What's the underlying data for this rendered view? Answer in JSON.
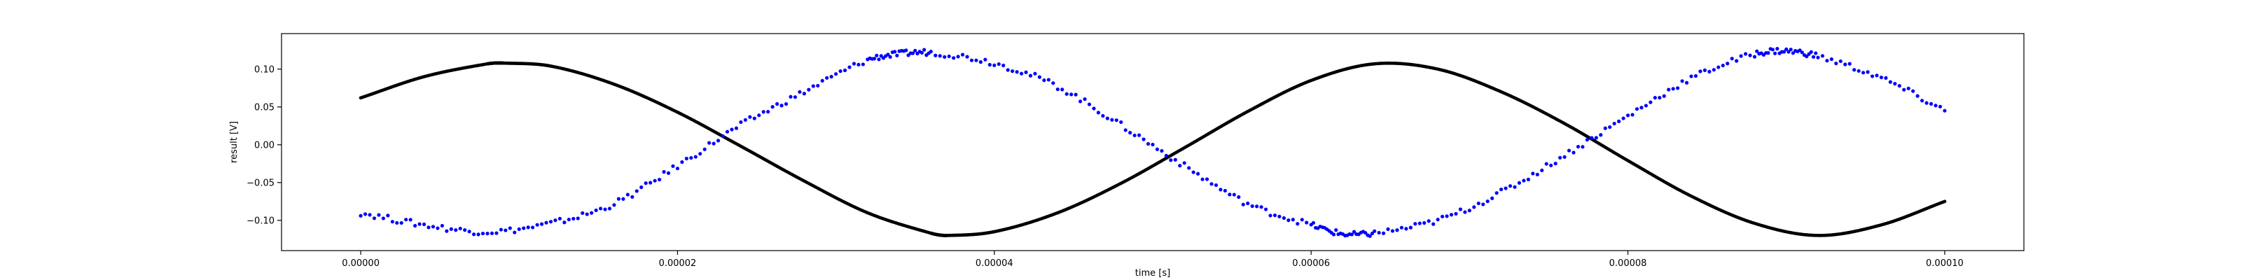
{
  "chart_data": {
    "type": "scatter",
    "xlabel": "time [s]",
    "ylabel": "result [V]",
    "xlim": [
      -5e-06,
      0.000105
    ],
    "ylim": [
      -0.14,
      0.147
    ],
    "x_ticks": [
      "0.00000",
      "0.00002",
      "0.00004",
      "0.00006",
      "0.00008",
      "0.00010"
    ],
    "x_tick_values": [
      0,
      2e-05,
      4e-05,
      6e-05,
      8e-05,
      0.0001
    ],
    "y_ticks": [
      "−0.10",
      "−0.05",
      "0.00",
      "0.05",
      "0.10"
    ],
    "y_tick_values": [
      -0.1,
      -0.05,
      0,
      0.05,
      0.1
    ],
    "grid": false,
    "series": [
      {
        "color": "#000000",
        "points": [
          [
            0.0,
            0.062
          ],
          [
            4e-06,
            0.09
          ],
          [
            8e-06,
            0.107
          ],
          [
            9e-06,
            0.108
          ],
          [
            1.2e-05,
            0.104
          ],
          [
            1.6e-05,
            0.08
          ],
          [
            2e-05,
            0.043
          ],
          [
            2.4e-05,
            -0.002
          ],
          [
            2.8e-05,
            -0.048
          ],
          [
            3.2e-05,
            -0.09
          ],
          [
            3.6e-05,
            -0.117
          ],
          [
            3.7e-05,
            -0.12
          ],
          [
            4e-05,
            -0.115
          ],
          [
            4.4e-05,
            -0.09
          ],
          [
            4.8e-05,
            -0.051
          ],
          [
            5.2e-05,
            -0.004
          ],
          [
            5.6e-05,
            0.044
          ],
          [
            6e-05,
            0.085
          ],
          [
            6.4e-05,
            0.107
          ],
          [
            6.8e-05,
            0.1
          ],
          [
            7.2e-05,
            0.07
          ],
          [
            7.6e-05,
            0.028
          ],
          [
            8e-05,
            -0.021
          ],
          [
            8.4e-05,
            -0.068
          ],
          [
            8.8e-05,
            -0.104
          ],
          [
            9.2e-05,
            -0.12
          ],
          [
            9.6e-05,
            -0.106
          ],
          [
            0.0001,
            -0.075
          ]
        ]
      },
      {
        "color": "#0000ff",
        "points": [
          [
            0.0,
            -0.09
          ],
          [
            4e-06,
            -0.106
          ],
          [
            8e-06,
            -0.115
          ],
          [
            1.2e-05,
            -0.104
          ],
          [
            1.6e-05,
            -0.078
          ],
          [
            2e-05,
            -0.028
          ],
          [
            2.4e-05,
            0.026
          ],
          [
            2.8e-05,
            0.07
          ],
          [
            3.2e-05,
            0.112
          ],
          [
            3.4e-05,
            0.12
          ],
          [
            3.6e-05,
            0.122
          ],
          [
            4e-05,
            0.108
          ],
          [
            4.4e-05,
            0.077
          ],
          [
            4.8e-05,
            0.026
          ],
          [
            5.2e-05,
            -0.028
          ],
          [
            5.6e-05,
            -0.078
          ],
          [
            6e-05,
            -0.106
          ],
          [
            6.2e-05,
            -0.118
          ],
          [
            6.4e-05,
            -0.117
          ],
          [
            6.8e-05,
            -0.1
          ],
          [
            7.2e-05,
            -0.063
          ],
          [
            7.6e-05,
            -0.014
          ],
          [
            8e-05,
            0.038
          ],
          [
            8.4e-05,
            0.088
          ],
          [
            8.8e-05,
            0.12
          ],
          [
            9e-05,
            0.124
          ],
          [
            9.2e-05,
            0.117
          ],
          [
            9.6e-05,
            0.088
          ],
          [
            0.0001,
            0.045
          ]
        ]
      }
    ]
  }
}
